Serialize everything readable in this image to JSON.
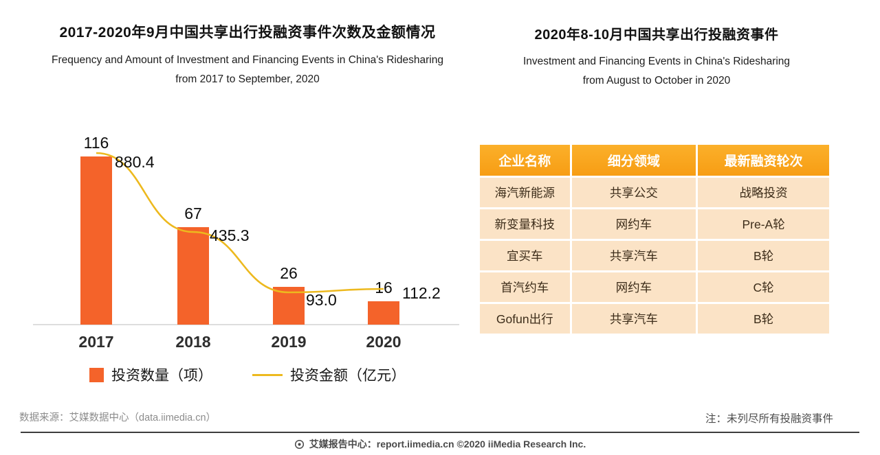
{
  "left_chart": {
    "title": "2017-2020年9月中国共享出行投融资事件次数及金额情况",
    "subtitle_line1": "Frequency and Amount of Investment and Financing Events in China's Ridesharing",
    "subtitle_line2": "from 2017 to September, 2020",
    "legend": [
      {
        "label": "投资数量（项）",
        "swatch": "square",
        "color": "#F4632A"
      },
      {
        "label": "投资金额（亿元）",
        "swatch": "line",
        "color": "#EDB91E"
      }
    ]
  },
  "chart_data": {
    "type": "bar",
    "combo": "bar+line",
    "title": "2017-2020年9月中国共享出行投融资事件次数及金额情况",
    "categories": [
      "2017",
      "2018",
      "2019",
      "2020"
    ],
    "series": [
      {
        "name": "投资数量（项）",
        "type": "bar",
        "values": [
          116,
          67,
          26,
          16
        ],
        "color": "#F4632A"
      },
      {
        "name": "投资金额（亿元）",
        "type": "line",
        "values": [
          880.4,
          435.3,
          93.0,
          112.2
        ],
        "color": "#EDB91E"
      }
    ],
    "xlabel": "",
    "ylabel": "",
    "grid": false,
    "legend_position": "bottom"
  },
  "right_panel": {
    "title": "2020年8-10月中国共享出行投融资事件",
    "subtitle_line1": "Investment and Financing Events in China's Ridesharing",
    "subtitle_line2": "from August to October in 2020",
    "table": {
      "headers": [
        "企业名称",
        "细分领域",
        "最新融资轮次"
      ],
      "rows": [
        [
          "海汽新能源",
          "共享公交",
          "战略投资"
        ],
        [
          "新变量科技",
          "网约车",
          "Pre-A轮"
        ],
        [
          "宜买车",
          "共享汽车",
          "B轮"
        ],
        [
          "首汽约车",
          "网约车",
          "C轮"
        ],
        [
          "Gofun出行",
          "共享汽车",
          "B轮"
        ]
      ]
    }
  },
  "footer": {
    "source": "数据来源：艾媒数据中心（data.iimedia.cn）",
    "note": "注：未列尽所有投融资事件",
    "bottom": "艾媒报告中心：report.iimedia.cn ©2020  iiMedia Research Inc."
  },
  "colors": {
    "bar": "#F4632A",
    "line": "#EDB91E",
    "table_header": "#F8A41B",
    "table_row": "#FBE3C6"
  }
}
